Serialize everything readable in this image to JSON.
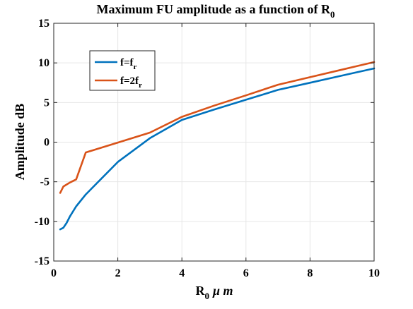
{
  "chart_data": {
    "type": "line",
    "title_main": "Maximum FU amplitude as a function of R",
    "title_sub": "0",
    "xlabel_main": "R",
    "xlabel_sub": "0",
    "xlabel_unit": "μ m",
    "ylabel": "Amplitude dB",
    "xlim": [
      0,
      10
    ],
    "ylim": [
      -15,
      15
    ],
    "xticks": [
      0,
      2,
      4,
      6,
      8,
      10
    ],
    "yticks": [
      -15,
      -10,
      -5,
      0,
      5,
      10,
      15
    ],
    "xtick_labels": [
      "0",
      "2",
      "4",
      "6",
      "8",
      "10"
    ],
    "ytick_labels": [
      "-15",
      "-10",
      "-5",
      "0",
      "5",
      "10",
      "15"
    ],
    "grid": true,
    "legend_position": "top-left",
    "series": [
      {
        "legend_main": "f=f",
        "legend_sub": "r",
        "color": "#0072BD",
        "x": [
          0.2,
          0.3,
          0.4,
          0.5,
          0.7,
          1,
          2,
          3,
          4,
          5,
          6,
          7,
          8,
          9,
          10
        ],
        "y": [
          -11.0,
          -10.8,
          -10.2,
          -9.4,
          -8.1,
          -6.6,
          -2.5,
          0.5,
          2.8,
          4.1,
          5.35,
          6.6,
          7.5,
          8.4,
          9.3
        ]
      },
      {
        "legend_main": "f=2f",
        "legend_sub": "r",
        "color": "#D95319",
        "x": [
          0.2,
          0.3,
          0.4,
          0.5,
          0.7,
          1,
          2,
          3,
          4,
          5,
          6,
          7,
          8,
          9,
          10
        ],
        "y": [
          -6.4,
          -5.6,
          -5.35,
          -5.1,
          -4.7,
          -1.3,
          -0.05,
          1.2,
          3.2,
          4.6,
          5.9,
          7.25,
          8.2,
          9.15,
          10.1
        ]
      }
    ]
  }
}
